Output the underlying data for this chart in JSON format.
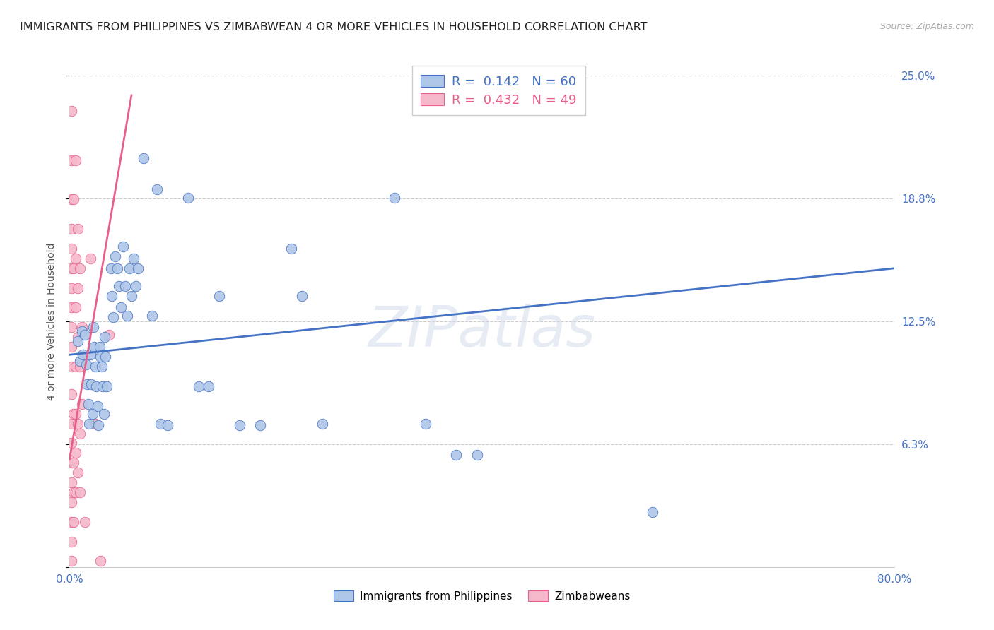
{
  "title": "IMMIGRANTS FROM PHILIPPINES VS ZIMBABWEAN 4 OR MORE VEHICLES IN HOUSEHOLD CORRELATION CHART",
  "source": "Source: ZipAtlas.com",
  "ylabel": "4 or more Vehicles in Household",
  "xlim": [
    0.0,
    0.8
  ],
  "ylim": [
    0.0,
    0.25
  ],
  "xticks": [
    0.0,
    0.16,
    0.32,
    0.48,
    0.64,
    0.8
  ],
  "xticklabels": [
    "0.0%",
    "",
    "",
    "",
    "",
    "80.0%"
  ],
  "yticks": [
    0.0,
    0.0625,
    0.125,
    0.1875,
    0.25
  ],
  "yticklabels_right": [
    "",
    "6.3%",
    "12.5%",
    "18.8%",
    "25.0%"
  ],
  "watermark": "ZIPatlas",
  "philippines_scatter": [
    [
      0.008,
      0.115
    ],
    [
      0.01,
      0.105
    ],
    [
      0.012,
      0.12
    ],
    [
      0.013,
      0.108
    ],
    [
      0.015,
      0.118
    ],
    [
      0.016,
      0.103
    ],
    [
      0.017,
      0.093
    ],
    [
      0.018,
      0.083
    ],
    [
      0.019,
      0.073
    ],
    [
      0.02,
      0.108
    ],
    [
      0.021,
      0.093
    ],
    [
      0.022,
      0.078
    ],
    [
      0.023,
      0.122
    ],
    [
      0.024,
      0.112
    ],
    [
      0.025,
      0.102
    ],
    [
      0.026,
      0.092
    ],
    [
      0.027,
      0.082
    ],
    [
      0.028,
      0.072
    ],
    [
      0.029,
      0.112
    ],
    [
      0.03,
      0.107
    ],
    [
      0.031,
      0.102
    ],
    [
      0.032,
      0.092
    ],
    [
      0.033,
      0.078
    ],
    [
      0.034,
      0.117
    ],
    [
      0.035,
      0.107
    ],
    [
      0.036,
      0.092
    ],
    [
      0.04,
      0.152
    ],
    [
      0.041,
      0.138
    ],
    [
      0.042,
      0.127
    ],
    [
      0.044,
      0.158
    ],
    [
      0.046,
      0.152
    ],
    [
      0.048,
      0.143
    ],
    [
      0.05,
      0.132
    ],
    [
      0.052,
      0.163
    ],
    [
      0.054,
      0.143
    ],
    [
      0.056,
      0.128
    ],
    [
      0.058,
      0.152
    ],
    [
      0.06,
      0.138
    ],
    [
      0.062,
      0.157
    ],
    [
      0.064,
      0.143
    ],
    [
      0.066,
      0.152
    ],
    [
      0.072,
      0.208
    ],
    [
      0.08,
      0.128
    ],
    [
      0.085,
      0.192
    ],
    [
      0.088,
      0.073
    ],
    [
      0.095,
      0.072
    ],
    [
      0.115,
      0.188
    ],
    [
      0.125,
      0.092
    ],
    [
      0.135,
      0.092
    ],
    [
      0.145,
      0.138
    ],
    [
      0.165,
      0.072
    ],
    [
      0.185,
      0.072
    ],
    [
      0.215,
      0.162
    ],
    [
      0.225,
      0.138
    ],
    [
      0.245,
      0.073
    ],
    [
      0.315,
      0.188
    ],
    [
      0.345,
      0.073
    ],
    [
      0.375,
      0.057
    ],
    [
      0.395,
      0.057
    ],
    [
      0.565,
      0.028
    ]
  ],
  "zimbabwe_scatter": [
    [
      0.002,
      0.232
    ],
    [
      0.002,
      0.207
    ],
    [
      0.002,
      0.187
    ],
    [
      0.002,
      0.172
    ],
    [
      0.002,
      0.162
    ],
    [
      0.002,
      0.152
    ],
    [
      0.002,
      0.142
    ],
    [
      0.002,
      0.132
    ],
    [
      0.002,
      0.122
    ],
    [
      0.002,
      0.112
    ],
    [
      0.002,
      0.102
    ],
    [
      0.002,
      0.088
    ],
    [
      0.002,
      0.073
    ],
    [
      0.002,
      0.063
    ],
    [
      0.002,
      0.053
    ],
    [
      0.002,
      0.043
    ],
    [
      0.002,
      0.033
    ],
    [
      0.002,
      0.023
    ],
    [
      0.002,
      0.013
    ],
    [
      0.002,
      0.003
    ],
    [
      0.004,
      0.187
    ],
    [
      0.004,
      0.152
    ],
    [
      0.004,
      0.078
    ],
    [
      0.004,
      0.053
    ],
    [
      0.004,
      0.038
    ],
    [
      0.004,
      0.023
    ],
    [
      0.006,
      0.207
    ],
    [
      0.006,
      0.157
    ],
    [
      0.006,
      0.132
    ],
    [
      0.006,
      0.102
    ],
    [
      0.006,
      0.078
    ],
    [
      0.006,
      0.058
    ],
    [
      0.006,
      0.038
    ],
    [
      0.008,
      0.172
    ],
    [
      0.008,
      0.142
    ],
    [
      0.008,
      0.117
    ],
    [
      0.008,
      0.073
    ],
    [
      0.008,
      0.048
    ],
    [
      0.01,
      0.152
    ],
    [
      0.01,
      0.102
    ],
    [
      0.01,
      0.068
    ],
    [
      0.01,
      0.038
    ],
    [
      0.012,
      0.122
    ],
    [
      0.012,
      0.083
    ],
    [
      0.015,
      0.023
    ],
    [
      0.02,
      0.157
    ],
    [
      0.025,
      0.073
    ],
    [
      0.03,
      0.003
    ],
    [
      0.038,
      0.118
    ]
  ],
  "philippines_line": {
    "x_start": 0.0,
    "y_start": 0.108,
    "x_end": 0.8,
    "y_end": 0.152
  },
  "zimbabwe_line": {
    "x_start": 0.0,
    "y_start": 0.055,
    "x_end": 0.06,
    "y_end": 0.24
  },
  "philippines_color": "#aec6e8",
  "philippines_edge_color": "#4472c4",
  "zimbabwe_color": "#f5b8cb",
  "zimbabwe_edge_color": "#e8608a",
  "blue_line_color": "#4472c4",
  "pink_line_color": "#e8608a",
  "background_color": "#ffffff",
  "grid_color": "#cccccc",
  "title_fontsize": 11.5,
  "axis_label_fontsize": 10,
  "tick_fontsize": 11,
  "legend_fontsize": 13,
  "r_blue": "R =  0.142",
  "n_blue": "N = 60",
  "r_pink": "R =  0.432",
  "n_pink": "N = 49",
  "legend_label_blue": "Immigrants from Philippines",
  "legend_label_pink": "Zimbabweans"
}
